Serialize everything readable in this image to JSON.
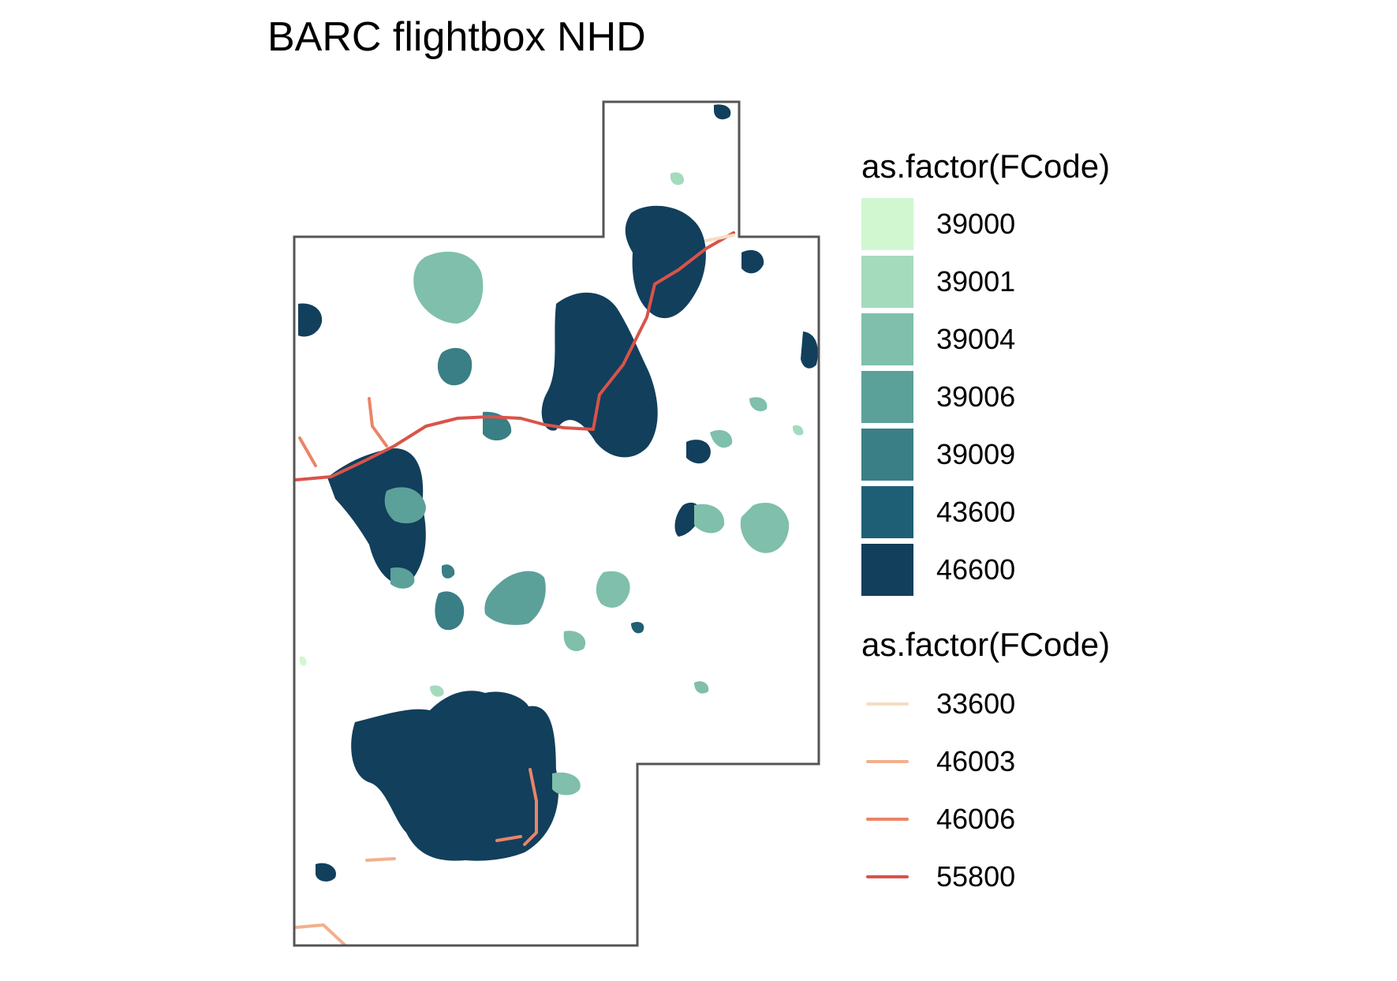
{
  "title": "BARC flightbox NHD",
  "colors": {
    "boundary": "#555555",
    "background": "#ffffff"
  },
  "legend_fill": {
    "title": "as.factor(FCode)",
    "items": [
      {
        "label": "39000",
        "color": "#d1f7d1"
      },
      {
        "label": "39001",
        "color": "#a4dbbd"
      },
      {
        "label": "39004",
        "color": "#7fbfab"
      },
      {
        "label": "39006",
        "color": "#5ba19a"
      },
      {
        "label": "39009",
        "color": "#3a7f85"
      },
      {
        "label": "43600",
        "color": "#1f5f75"
      },
      {
        "label": "46600",
        "color": "#123f5c"
      }
    ]
  },
  "legend_line": {
    "title": "as.factor(FCode)",
    "items": [
      {
        "label": "33600",
        "color": "#f7dcc2"
      },
      {
        "label": "46003",
        "color": "#f2b08d"
      },
      {
        "label": "46006",
        "color": "#eb8467"
      },
      {
        "label": "55800",
        "color": "#d9534a"
      }
    ]
  }
}
